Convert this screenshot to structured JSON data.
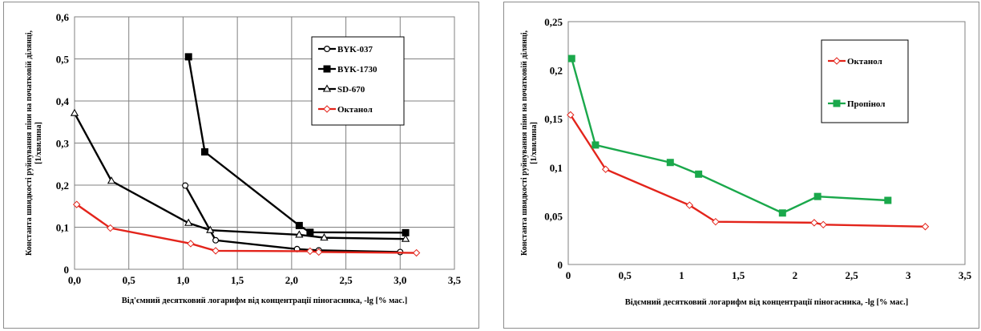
{
  "chart_data": [
    {
      "type": "line",
      "xlabel": "Від'ємний десятковий логарифм від концентрації піногасника, -lg [% мас.]",
      "ylabel": "Константа швидкості руйнування піни на початковій ділянці, [1/хвилина]",
      "xlim": [
        0,
        3.5
      ],
      "ylim": [
        0,
        0.6
      ],
      "xticks": [
        "0,0",
        "0,5",
        "1,0",
        "1,5",
        "2,0",
        "2,5",
        "3,0",
        "3,5"
      ],
      "yticks": [
        "0",
        "0,1",
        "0,2",
        "0,3",
        "0,4",
        "0,5",
        "0,6"
      ],
      "grid": true,
      "legend_position": "top-right",
      "series": [
        {
          "name": "BYK-037",
          "color": "#000000",
          "marker": "circle-open",
          "x": [
            1.02,
            1.3,
            2.05,
            2.25,
            3.0
          ],
          "y": [
            0.199,
            0.069,
            0.048,
            0.045,
            0.041
          ]
        },
        {
          "name": "BYK-1730",
          "color": "#000000",
          "marker": "square-filled",
          "x": [
            1.05,
            1.2,
            2.07,
            2.17,
            3.05
          ],
          "y": [
            0.505,
            0.279,
            0.104,
            0.088,
            0.087
          ]
        },
        {
          "name": "SD-670",
          "color": "#000000",
          "marker": "triangle-open",
          "x": [
            0.0,
            0.34,
            1.05,
            1.25,
            2.07,
            2.3,
            3.05
          ],
          "y": [
            0.371,
            0.21,
            0.11,
            0.093,
            0.082,
            0.075,
            0.072
          ]
        },
        {
          "name": "Октанол",
          "color": "#e3241b",
          "marker": "diamond-open",
          "x": [
            0.02,
            0.33,
            1.07,
            1.3,
            2.17,
            2.25,
            3.15
          ],
          "y": [
            0.154,
            0.098,
            0.061,
            0.044,
            0.043,
            0.041,
            0.039
          ]
        }
      ]
    },
    {
      "type": "line",
      "xlabel": "Відємний десятковий логарифм від концентрації піногасника, -lg [% мас.]",
      "ylabel": "Константа швидкості руйнування піни на початковій ділянці, [1/хвилина]",
      "xlim": [
        0,
        3.5
      ],
      "ylim": [
        0,
        0.25
      ],
      "xticks": [
        "0",
        "0,5",
        "1",
        "1,5",
        "2",
        "2,5",
        "3",
        "3,5"
      ],
      "yticks": [
        "0",
        "0,05",
        "0,1",
        "0,15",
        "0,2",
        "0,25"
      ],
      "grid": false,
      "legend_position": "top-right",
      "series": [
        {
          "name": "Октанол",
          "color": "#e3241b",
          "marker": "diamond-open",
          "x": [
            0.02,
            0.33,
            1.07,
            1.3,
            2.17,
            2.25,
            3.15
          ],
          "y": [
            0.154,
            0.098,
            0.061,
            0.044,
            0.043,
            0.041,
            0.039
          ]
        },
        {
          "name": "Пропінол",
          "color": "#1aa84b",
          "marker": "square-filled",
          "x": [
            0.03,
            0.24,
            0.9,
            1.15,
            1.89,
            2.2,
            2.82
          ],
          "y": [
            0.212,
            0.123,
            0.105,
            0.093,
            0.053,
            0.07,
            0.066
          ]
        }
      ]
    }
  ]
}
